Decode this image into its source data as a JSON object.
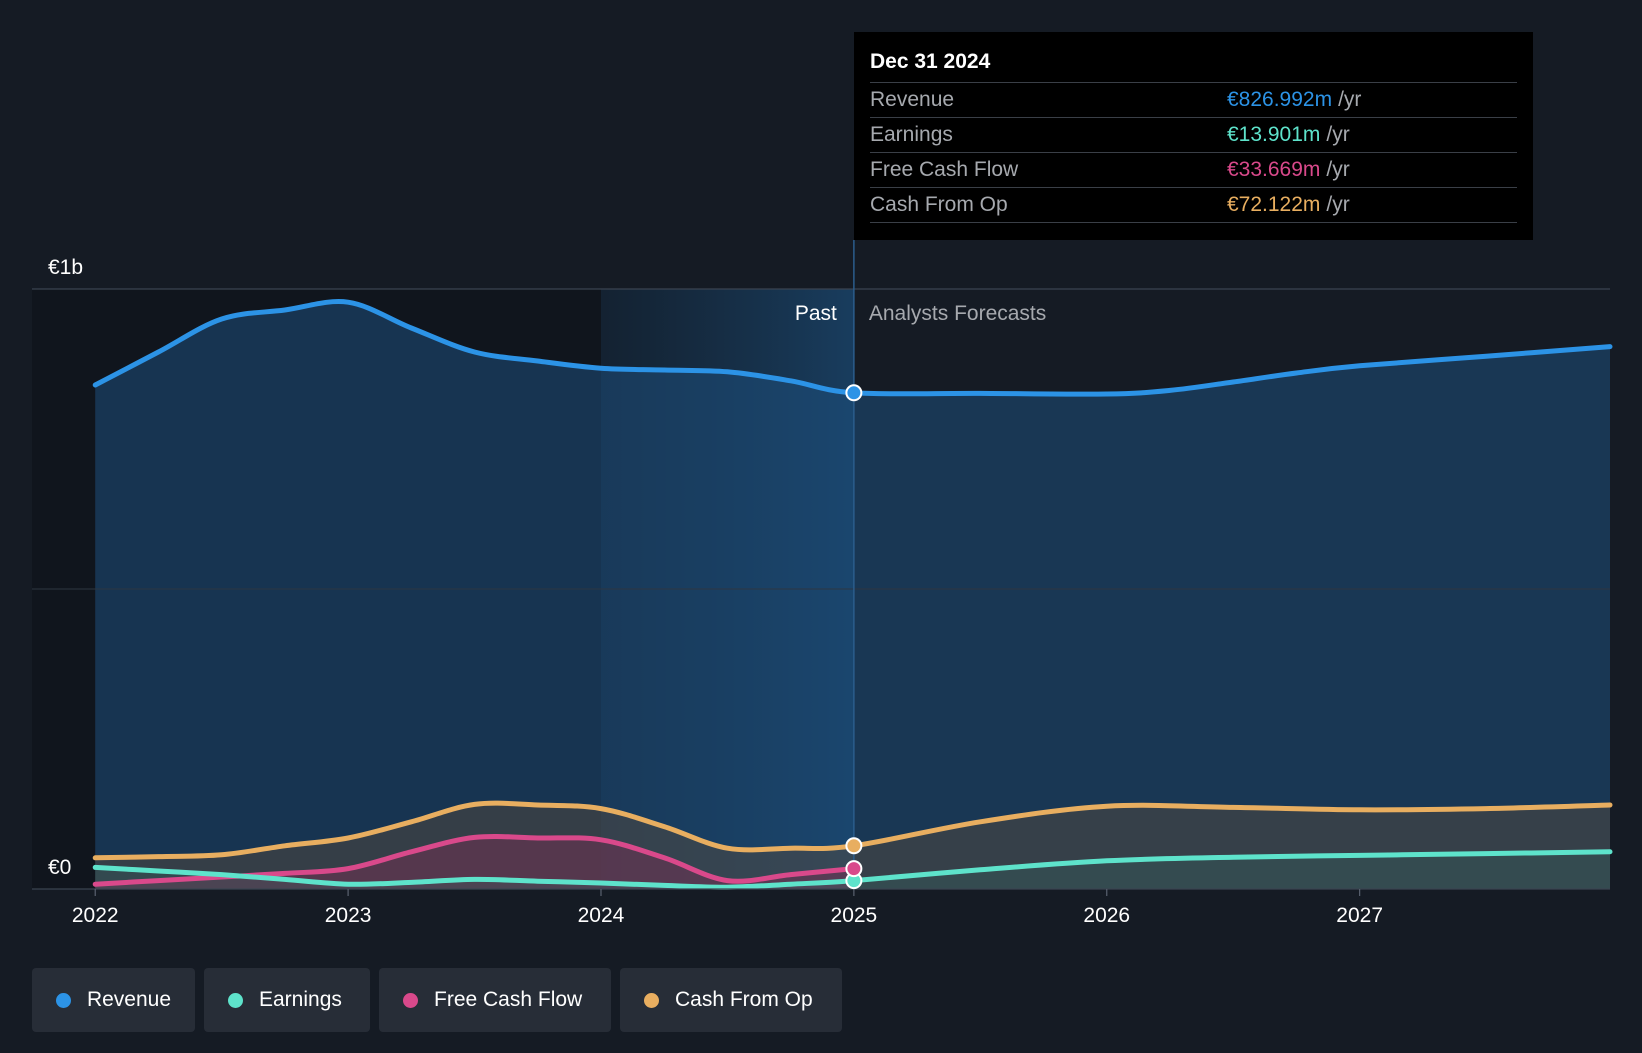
{
  "chart_data": {
    "type": "area",
    "y_axis": {
      "ticks": [
        {
          "value": 1000,
          "label": "€1b"
        },
        {
          "value": 0,
          "label": "€0"
        }
      ],
      "ylim": [
        0,
        1000
      ],
      "unit": "€m"
    },
    "x_axis": {
      "ticks": [
        "2022",
        "2023",
        "2024",
        "2025",
        "2026",
        "2027"
      ],
      "xlim": [
        2021.75,
        2027.99
      ]
    },
    "past_label": "Past",
    "forecast_label": "Analysts Forecasts",
    "divider_x": 2025.0,
    "highlight_start_x": 2024.0,
    "series": [
      {
        "name": "Revenue",
        "color": "#2c93e6",
        "points": [
          [
            2022,
            840
          ],
          [
            2022.25,
            895
          ],
          [
            2022.5,
            950
          ],
          [
            2022.75,
            965
          ],
          [
            2023,
            978
          ],
          [
            2023.25,
            935
          ],
          [
            2023.5,
            895
          ],
          [
            2023.75,
            880
          ],
          [
            2024,
            868
          ],
          [
            2024.25,
            865
          ],
          [
            2024.5,
            862
          ],
          [
            2024.75,
            847
          ],
          [
            2025,
            827
          ],
          [
            2025.5,
            826
          ],
          [
            2026,
            825
          ],
          [
            2026.25,
            831
          ],
          [
            2026.5,
            845
          ],
          [
            2026.75,
            860
          ],
          [
            2027,
            872
          ],
          [
            2027.5,
            888
          ],
          [
            2027.99,
            904
          ]
        ]
      },
      {
        "name": "Earnings",
        "color": "#5ee3cb",
        "points": [
          [
            2022,
            36
          ],
          [
            2022.25,
            30
          ],
          [
            2022.5,
            24
          ],
          [
            2022.75,
            16
          ],
          [
            2023,
            8
          ],
          [
            2023.25,
            11
          ],
          [
            2023.5,
            16
          ],
          [
            2023.75,
            13
          ],
          [
            2024,
            10
          ],
          [
            2024.25,
            6
          ],
          [
            2024.5,
            3
          ],
          [
            2024.75,
            8
          ],
          [
            2025,
            14
          ],
          [
            2025.5,
            32
          ],
          [
            2026,
            47
          ],
          [
            2026.5,
            53
          ],
          [
            2027,
            56
          ],
          [
            2027.5,
            59
          ],
          [
            2027.99,
            62
          ]
        ]
      },
      {
        "name": "Free Cash Flow",
        "color": "#d9498b",
        "points": [
          [
            2022,
            8
          ],
          [
            2022.25,
            14
          ],
          [
            2022.5,
            20
          ],
          [
            2022.75,
            26
          ],
          [
            2023,
            34
          ],
          [
            2023.25,
            62
          ],
          [
            2023.5,
            86
          ],
          [
            2023.75,
            85
          ],
          [
            2024,
            82
          ],
          [
            2024.25,
            52
          ],
          [
            2024.5,
            14
          ],
          [
            2024.75,
            24
          ],
          [
            2025,
            34
          ]
        ]
      },
      {
        "name": "Cash From Op",
        "color": "#e8ae60",
        "points": [
          [
            2022,
            52
          ],
          [
            2022.25,
            54
          ],
          [
            2022.5,
            57
          ],
          [
            2022.75,
            72
          ],
          [
            2023,
            85
          ],
          [
            2023.25,
            112
          ],
          [
            2023.5,
            141
          ],
          [
            2023.75,
            140
          ],
          [
            2024,
            134
          ],
          [
            2024.25,
            104
          ],
          [
            2024.5,
            68
          ],
          [
            2024.75,
            68
          ],
          [
            2025,
            72
          ],
          [
            2025.5,
            112
          ],
          [
            2026,
            138
          ],
          [
            2026.5,
            136
          ],
          [
            2027,
            132
          ],
          [
            2027.5,
            134
          ],
          [
            2027.99,
            140
          ]
        ]
      }
    ],
    "tooltip": {
      "date": "Dec 31 2024",
      "rows": [
        {
          "label": "Revenue",
          "value": "€826.992m",
          "unit": "/yr",
          "color": "#2c93e6"
        },
        {
          "label": "Earnings",
          "value": "€13.901m",
          "unit": "/yr",
          "color": "#5ee3cb"
        },
        {
          "label": "Free Cash Flow",
          "value": "€33.669m",
          "unit": "/yr",
          "color": "#d9498b"
        },
        {
          "label": "Cash From Op",
          "value": "€72.122m",
          "unit": "/yr",
          "color": "#e8ae60"
        }
      ]
    }
  },
  "legend": [
    {
      "label": "Revenue",
      "color": "#2c93e6"
    },
    {
      "label": "Earnings",
      "color": "#5ee3cb"
    },
    {
      "label": "Free Cash Flow",
      "color": "#d9498b"
    },
    {
      "label": "Cash From Op",
      "color": "#e8ae60"
    }
  ]
}
